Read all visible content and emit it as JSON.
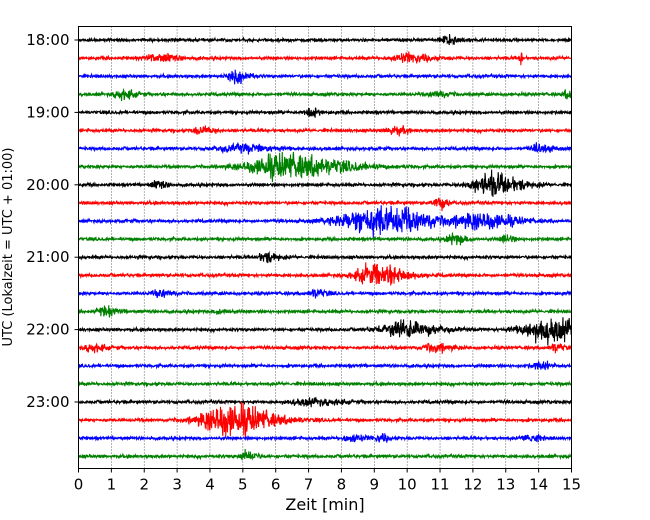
{
  "chart_data": {
    "type": "seismogram",
    "xlabel": "Zeit  [min]",
    "ylabel": "UTC (Lokalzeit = UTC + 01:00)",
    "xlim": [
      0,
      15
    ],
    "x_ticks": [
      "0",
      "1",
      "2",
      "3",
      "4",
      "5",
      "6",
      "7",
      "8",
      "9",
      "10",
      "11",
      "12",
      "13",
      "14",
      "15"
    ],
    "y_tick_labels": [
      "18:00",
      "19:00",
      "20:00",
      "21:00",
      "22:00",
      "23:00"
    ],
    "grid_x": true,
    "trace_colors": [
      "#000000",
      "#ff0000",
      "#0000ff",
      "#008000"
    ],
    "traces": [
      {
        "time": "18:00",
        "bursts": [
          [
            11.2,
            0.35,
            0.5
          ]
        ]
      },
      {
        "time": "18:15",
        "bursts": [
          [
            2.4,
            0.5,
            0.45
          ],
          [
            10.0,
            0.6,
            0.5
          ],
          [
            13.45,
            0.05,
            1.0
          ]
        ]
      },
      {
        "time": "18:30",
        "bursts": [
          [
            4.8,
            0.35,
            0.65
          ]
        ]
      },
      {
        "time": "18:45",
        "bursts": [
          [
            1.3,
            0.3,
            0.55
          ],
          [
            10.9,
            0.3,
            0.35
          ],
          [
            14.9,
            0.2,
            0.5
          ]
        ]
      },
      {
        "time": "19:00",
        "bursts": [
          [
            7.0,
            0.2,
            0.6
          ]
        ]
      },
      {
        "time": "19:15",
        "bursts": [
          [
            3.7,
            0.3,
            0.45
          ],
          [
            9.6,
            0.3,
            0.45
          ]
        ]
      },
      {
        "time": "19:30",
        "bursts": [
          [
            4.9,
            0.8,
            0.45
          ],
          [
            14.0,
            0.3,
            0.45
          ]
        ]
      },
      {
        "time": "19:45",
        "bursts": [
          [
            6.2,
            1.4,
            1.45
          ]
        ]
      },
      {
        "time": "20:00",
        "bursts": [
          [
            2.4,
            0.25,
            0.4
          ],
          [
            12.5,
            0.7,
            1.3
          ]
        ]
      },
      {
        "time": "20:15",
        "bursts": [
          [
            10.95,
            0.2,
            0.75
          ]
        ]
      },
      {
        "time": "20:30",
        "bursts": [
          [
            9.0,
            1.3,
            1.75
          ],
          [
            12.2,
            0.8,
            1.0
          ]
        ]
      },
      {
        "time": "20:45",
        "bursts": [
          [
            11.4,
            0.3,
            0.55
          ],
          [
            13.0,
            0.2,
            0.4
          ]
        ]
      },
      {
        "time": "21:00",
        "bursts": [
          [
            5.7,
            0.3,
            0.55
          ]
        ]
      },
      {
        "time": "21:15",
        "bursts": [
          [
            9.0,
            0.7,
            1.3
          ]
        ]
      },
      {
        "time": "21:30",
        "bursts": [
          [
            2.5,
            0.3,
            0.4
          ],
          [
            7.2,
            0.25,
            0.45
          ]
        ]
      },
      {
        "time": "21:45",
        "bursts": [
          [
            0.8,
            0.3,
            0.55
          ],
          [
            4.3,
            0.2,
            0.35
          ]
        ]
      },
      {
        "time": "22:00",
        "bursts": [
          [
            9.8,
            0.8,
            0.95
          ],
          [
            14.3,
            1.0,
            1.4
          ]
        ]
      },
      {
        "time": "22:15",
        "bursts": [
          [
            0.4,
            0.3,
            0.45
          ],
          [
            10.8,
            0.4,
            0.5
          ],
          [
            14.5,
            0.2,
            0.5
          ]
        ]
      },
      {
        "time": "22:30",
        "bursts": [
          [
            14.0,
            0.25,
            0.55
          ]
        ]
      },
      {
        "time": "22:45",
        "bursts": []
      },
      {
        "time": "23:00",
        "bursts": [
          [
            7.0,
            0.7,
            0.4
          ]
        ]
      },
      {
        "time": "23:15",
        "bursts": [
          [
            4.5,
            1.0,
            2.0
          ]
        ]
      },
      {
        "time": "23:30",
        "bursts": [
          [
            8.3,
            0.3,
            0.45
          ],
          [
            9.2,
            0.2,
            0.45
          ],
          [
            13.7,
            0.25,
            0.5
          ]
        ]
      },
      {
        "time": "23:45",
        "bursts": [
          [
            5.1,
            0.25,
            0.55
          ]
        ]
      }
    ]
  }
}
